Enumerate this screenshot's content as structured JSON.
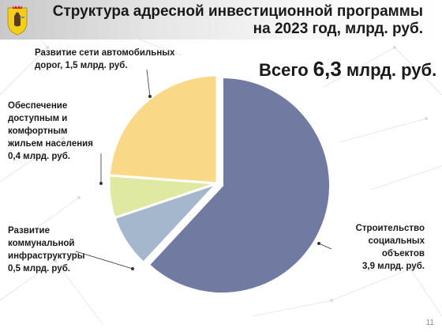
{
  "header": {
    "title_line1": "Структура адресной инвестиционной программы",
    "title_line2": "на 2023 год, млрд. руб."
  },
  "total": {
    "prefix": "Всего",
    "value": "6,3",
    "unit": "млрд. руб."
  },
  "labels": {
    "roads": [
      "Развитие сети автомобильных",
      "дорог, 1,5 млрд. руб."
    ],
    "housing": [
      "Обеспечение",
      "доступным и",
      "комфортным",
      "жильем населения",
      "0,4 млрд. руб."
    ],
    "utilities": [
      "Развитие",
      "коммунальной",
      "инфраструктуры",
      "0,5 млрд. руб."
    ],
    "social": [
      "Строительство",
      "социальных объектов",
      "3,9 млрд. руб."
    ]
  },
  "page_number": "11",
  "chart_data": {
    "type": "pie",
    "unit": "млрд. руб.",
    "slices": [
      {
        "key": "social",
        "value": 3.9,
        "color": "#717ba1"
      },
      {
        "key": "utilities",
        "value": 0.5,
        "color": "#a4b7cd"
      },
      {
        "key": "housing",
        "value": 0.4,
        "color": "#e0e9a1"
      },
      {
        "key": "roads",
        "value": 1.5,
        "color": "#f9d987"
      }
    ]
  },
  "colors": {
    "slice_border": "#ffffff",
    "leader_line": "#333333",
    "crest_yellow": "#f2cf1b",
    "crest_red": "#c62828"
  },
  "icons": {
    "crest": "yaroslavl-coat-of-arms-icon"
  }
}
